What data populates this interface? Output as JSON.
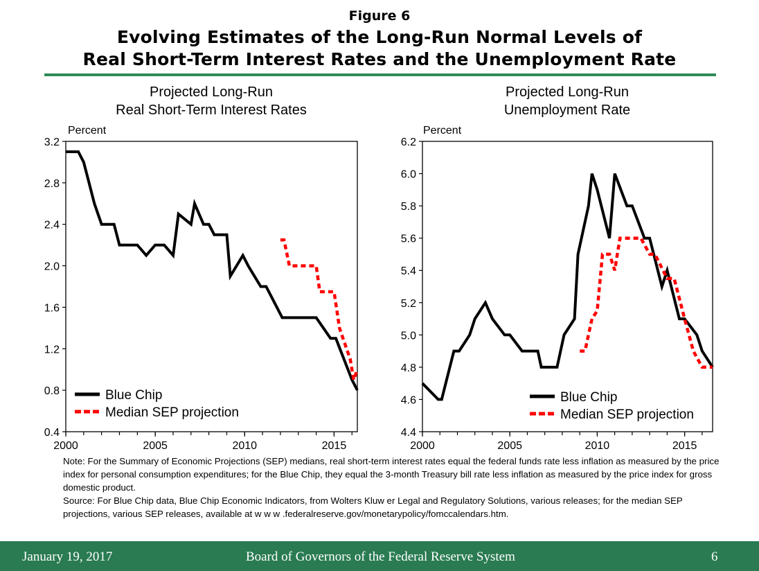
{
  "figure_label": "Figure 6",
  "title_line1": "Evolving Estimates of the Long-Run Normal Levels of",
  "title_line2": "Real Short-Term Interest Rates and the Unemployment Rate",
  "note": "Note: For the Summary of Economic Projections (SEP) medians, real short-term interest rates equal the federal funds rate less inflation as measured by the price index for personal consumption expenditures; for the Blue Chip, they equal  the 3-month Treasury bill rate less inflation as measured by the price index for gross domestic product.",
  "source": "Source:  For Blue Chip data, Blue Chip Economic Indicators, from Wolters Kluw er Legal and Regulatory Solutions, various releases; for the median SEP projections, various SEP releases, available at w w w .federalreserve.gov/monetarypolicy/fomccalendars.htm.",
  "footer": {
    "date": "January 19, 2017",
    "org": "Board of Governors of the Federal Reserve System",
    "page": "6"
  },
  "colors": {
    "blue_chip": "#000000",
    "sep": "#ff0000",
    "accent": "#2a7b52"
  },
  "chart_data": [
    {
      "type": "line",
      "title_line1": "Projected Long-Run",
      "title_line2": "Real Short-Term Interest Rates",
      "ylabel": "Percent",
      "xlabel": "",
      "xlim": [
        2000,
        2016.3
      ],
      "ylim": [
        0.4,
        3.2
      ],
      "yticks": [
        0.4,
        0.8,
        1.2,
        1.6,
        2.0,
        2.4,
        2.8,
        3.2
      ],
      "ytick_labels": [
        "0.4",
        "0.8",
        "1.2",
        "1.6",
        "2.0",
        "2.4",
        "2.8",
        "3.2"
      ],
      "xticks": [
        2000,
        2005,
        2010,
        2015
      ],
      "xtick_labels": [
        "2000",
        "2005",
        "2010",
        "2015"
      ],
      "legend": "bottom-left",
      "grid": false,
      "series": [
        {
          "name": "Blue Chip",
          "style": "solid",
          "color": "#000000",
          "x": [
            2000,
            2000.7,
            2001,
            2001.3,
            2001.6,
            2001.8,
            2002,
            2002.7,
            2003,
            2003.7,
            2004,
            2004.5,
            2005,
            2005.5,
            2006,
            2006.3,
            2007,
            2007.2,
            2007.7,
            2008,
            2008.3,
            2009,
            2009.2,
            2009.9,
            2010.2,
            2010.9,
            2011.2,
            2011.8,
            2012.1,
            2014,
            2014.8,
            2015.1,
            2016,
            2016.3
          ],
          "y": [
            3.1,
            3.1,
            3.0,
            2.8,
            2.6,
            2.5,
            2.4,
            2.4,
            2.2,
            2.2,
            2.2,
            2.1,
            2.2,
            2.2,
            2.1,
            2.5,
            2.4,
            2.6,
            2.4,
            2.4,
            2.3,
            2.3,
            1.9,
            2.1,
            2.0,
            1.8,
            1.8,
            1.6,
            1.5,
            1.5,
            1.3,
            1.3,
            0.9,
            0.8
          ]
        },
        {
          "name": "Median SEP projection",
          "style": "dashed",
          "color": "#ff0000",
          "x": [
            2012,
            2012.2,
            2012.5,
            2012.7,
            2014,
            2014.2,
            2014.5,
            2015,
            2015.3,
            2015.5,
            2015.9,
            2016.1,
            2016.3
          ],
          "y": [
            2.25,
            2.25,
            2.0,
            2.0,
            2.0,
            1.75,
            1.75,
            1.75,
            1.4,
            1.3,
            1.1,
            0.9,
            1.0
          ]
        }
      ]
    },
    {
      "type": "line",
      "title_line1": "Projected Long-Run",
      "title_line2": "Unemployment Rate",
      "ylabel": "Percent",
      "xlabel": "",
      "xlim": [
        2000,
        2016.6
      ],
      "ylim": [
        4.4,
        6.2
      ],
      "yticks": [
        4.4,
        4.6,
        4.8,
        5.0,
        5.2,
        5.4,
        5.6,
        5.8,
        6.0,
        6.2
      ],
      "ytick_labels": [
        "4.4",
        "4.6",
        "4.8",
        "5.0",
        "5.2",
        "5.4",
        "5.6",
        "5.8",
        "6.0",
        "6.2"
      ],
      "xticks": [
        2000,
        2005,
        2010,
        2015
      ],
      "xtick_labels": [
        "2000",
        "2005",
        "2010",
        "2015"
      ],
      "legend": "bottom-right",
      "grid": false,
      "series": [
        {
          "name": "Blue Chip",
          "style": "solid",
          "color": "#000000",
          "x": [
            2000,
            2000.9,
            2001.1,
            2001.8,
            2002.1,
            2002.7,
            2003,
            2003.6,
            2004,
            2004.7,
            2005,
            2005.7,
            2006.1,
            2006.6,
            2006.8,
            2007.7,
            2008.1,
            2008.7,
            2008.9,
            2009.5,
            2009.7,
            2010,
            2010.7,
            2011,
            2011.7,
            2012,
            2012.7,
            2013,
            2013.7,
            2014,
            2014.7,
            2015,
            2015.7,
            2016,
            2016.6
          ],
          "y": [
            4.7,
            4.6,
            4.6,
            4.9,
            4.9,
            5.0,
            5.1,
            5.2,
            5.1,
            5.0,
            5.0,
            4.9,
            4.9,
            4.9,
            4.8,
            4.8,
            5.0,
            5.1,
            5.5,
            5.8,
            6.0,
            5.9,
            5.6,
            6.0,
            5.8,
            5.8,
            5.6,
            5.6,
            5.3,
            5.4,
            5.1,
            5.1,
            5.0,
            4.9,
            4.8
          ]
        },
        {
          "name": "Median SEP projection",
          "style": "dashed",
          "color": "#ff0000",
          "x": [
            2009,
            2009.3,
            2009.7,
            2010,
            2010.3,
            2010.7,
            2011,
            2011.3,
            2011.8,
            2012.5,
            2013,
            2013.3,
            2014,
            2014.4,
            2015,
            2015.5,
            2016,
            2016.6
          ],
          "y": [
            4.9,
            4.9,
            5.1,
            5.15,
            5.5,
            5.5,
            5.4,
            5.6,
            5.6,
            5.6,
            5.5,
            5.5,
            5.35,
            5.35,
            5.1,
            4.9,
            4.8,
            4.8
          ]
        }
      ]
    }
  ]
}
